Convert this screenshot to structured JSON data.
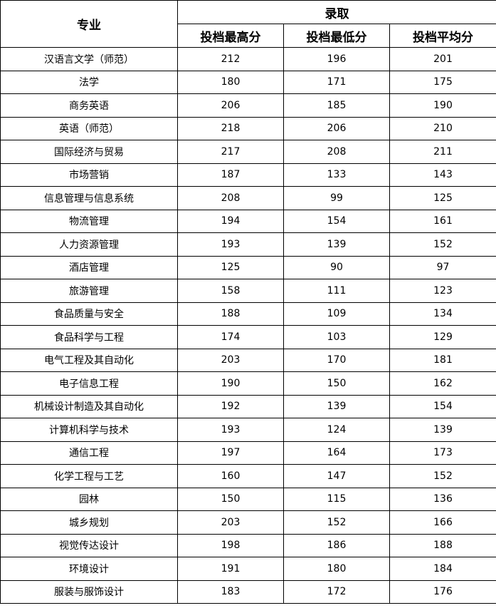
{
  "header": {
    "major": "专业",
    "group": "录取",
    "columns": [
      "投档最高分",
      "投档最低分",
      "投档平均分"
    ]
  },
  "rows": [
    {
      "major": "汉语言文学（师范）",
      "max": "212",
      "min": "196",
      "avg": "201"
    },
    {
      "major": "法学",
      "max": "180",
      "min": "171",
      "avg": "175"
    },
    {
      "major": "商务英语",
      "max": "206",
      "min": "185",
      "avg": "190"
    },
    {
      "major": "英语（师范）",
      "max": "218",
      "min": "206",
      "avg": "210"
    },
    {
      "major": "国际经济与贸易",
      "max": "217",
      "min": "208",
      "avg": "211"
    },
    {
      "major": "市场营销",
      "max": "187",
      "min": "133",
      "avg": "143"
    },
    {
      "major": "信息管理与信息系统",
      "max": "208",
      "min": "99",
      "avg": "125"
    },
    {
      "major": "物流管理",
      "max": "194",
      "min": "154",
      "avg": "161"
    },
    {
      "major": "人力资源管理",
      "max": "193",
      "min": "139",
      "avg": "152"
    },
    {
      "major": "酒店管理",
      "max": "125",
      "min": "90",
      "avg": "97"
    },
    {
      "major": "旅游管理",
      "max": "158",
      "min": "111",
      "avg": "123"
    },
    {
      "major": "食品质量与安全",
      "max": "188",
      "min": "109",
      "avg": "134"
    },
    {
      "major": "食品科学与工程",
      "max": "174",
      "min": "103",
      "avg": "129"
    },
    {
      "major": "电气工程及其自动化",
      "max": "203",
      "min": "170",
      "avg": "181"
    },
    {
      "major": "电子信息工程",
      "max": "190",
      "min": "150",
      "avg": "162"
    },
    {
      "major": "机械设计制造及其自动化",
      "max": "192",
      "min": "139",
      "avg": "154"
    },
    {
      "major": "计算机科学与技术",
      "max": "193",
      "min": "124",
      "avg": "139"
    },
    {
      "major": "通信工程",
      "max": "197",
      "min": "164",
      "avg": "173"
    },
    {
      "major": "化学工程与工艺",
      "max": "160",
      "min": "147",
      "avg": "152"
    },
    {
      "major": "园林",
      "max": "150",
      "min": "115",
      "avg": "136"
    },
    {
      "major": "城乡规划",
      "max": "203",
      "min": "152",
      "avg": "166"
    },
    {
      "major": "视觉传达设计",
      "max": "198",
      "min": "186",
      "avg": "188"
    },
    {
      "major": "环境设计",
      "max": "191",
      "min": "180",
      "avg": "184"
    },
    {
      "major": "服装与服饰设计",
      "max": "183",
      "min": "172",
      "avg": "176"
    }
  ]
}
